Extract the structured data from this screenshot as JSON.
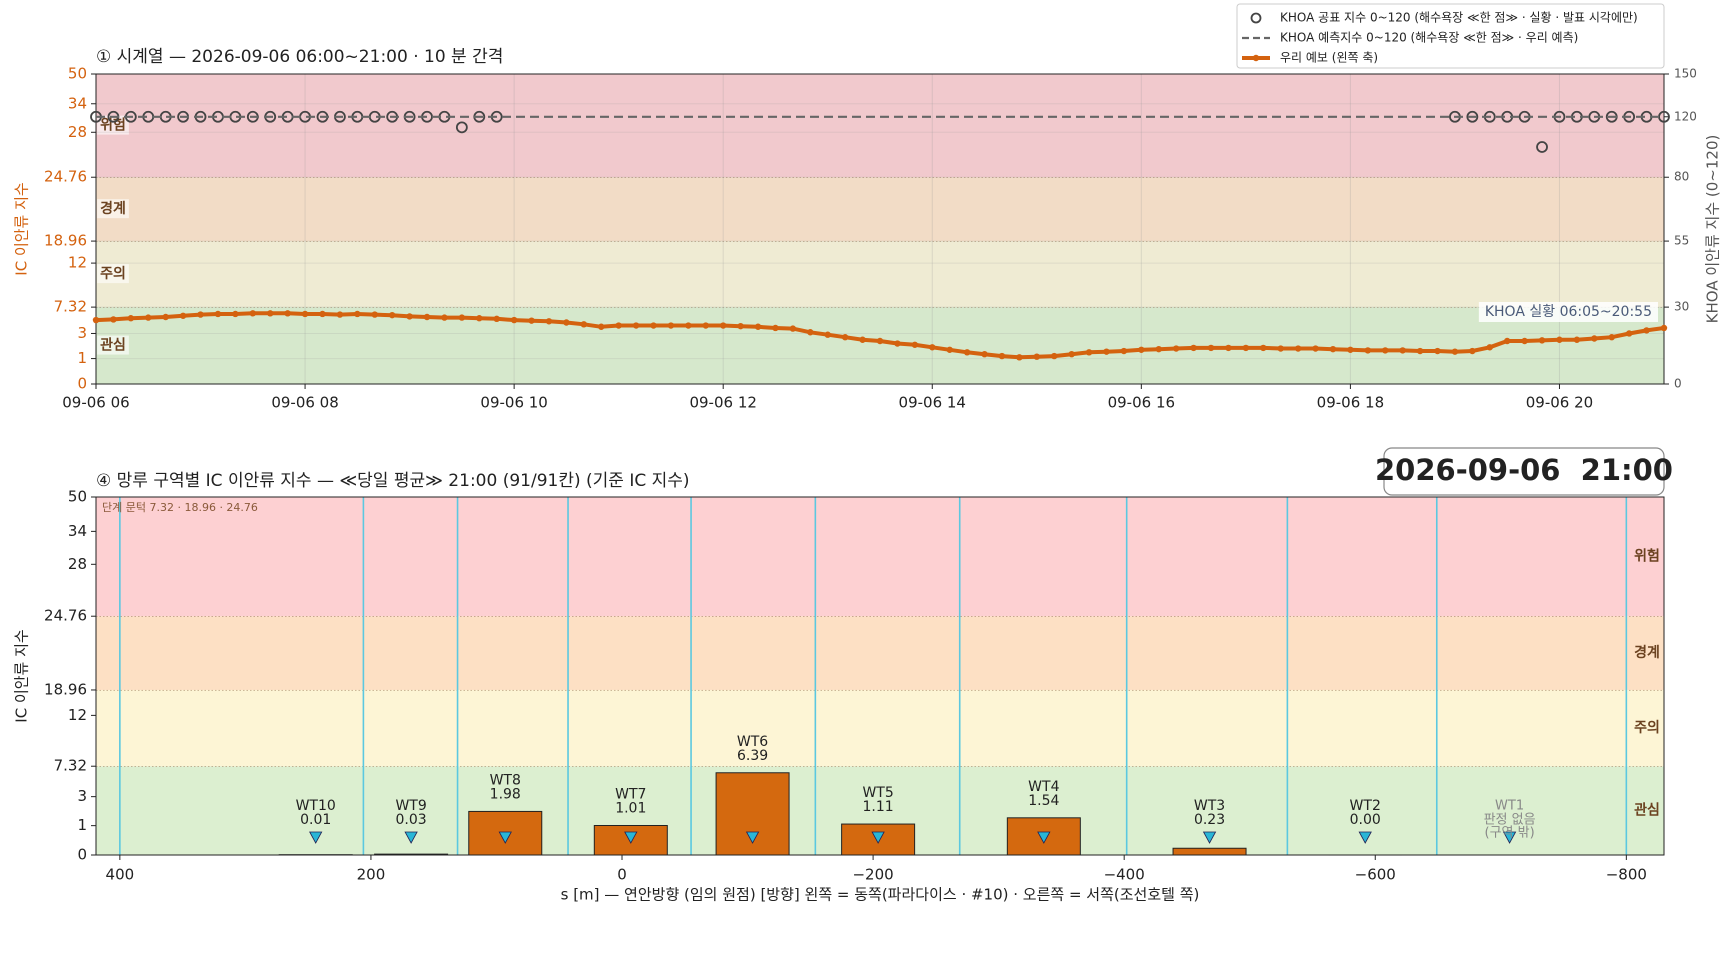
{
  "chart_data": [
    {
      "type": "line",
      "title": "① 시계열 — 2026-09-06 06:00~21:00 · 10 분 간격",
      "ylabel": "IC 이안류 지수",
      "y2label": "KHOA 이안류 지수 (0~120)",
      "annotation": "KHOA 실황 06:05~20:55",
      "categories": [
        "06:00",
        "06:10",
        "06:20",
        "06:30",
        "06:40",
        "06:50",
        "07:00",
        "07:10",
        "07:20",
        "07:30",
        "07:40",
        "07:50",
        "08:00",
        "08:10",
        "08:20",
        "08:30",
        "08:40",
        "08:50",
        "09:00",
        "09:10",
        "09:20",
        "09:30",
        "09:40",
        "09:50",
        "10:00",
        "10:10",
        "10:20",
        "10:30",
        "10:40",
        "10:50",
        "11:00",
        "11:10",
        "11:20",
        "11:30",
        "11:40",
        "11:50",
        "12:00",
        "12:10",
        "12:20",
        "12:30",
        "12:40",
        "12:50",
        "13:00",
        "13:10",
        "13:20",
        "13:30",
        "13:40",
        "13:50",
        "14:00",
        "14:10",
        "14:20",
        "14:30",
        "14:40",
        "14:50",
        "15:00",
        "15:10",
        "15:20",
        "15:30",
        "15:40",
        "15:50",
        "16:00",
        "16:10",
        "16:20",
        "16:30",
        "16:40",
        "16:50",
        "17:00",
        "17:10",
        "17:20",
        "17:30",
        "17:40",
        "17:50",
        "18:00",
        "18:10",
        "18:20",
        "18:30",
        "18:40",
        "18:50",
        "19:00",
        "19:10",
        "19:20",
        "19:30",
        "19:40",
        "19:50",
        "20:00",
        "20:10",
        "20:20",
        "20:30",
        "20:40",
        "20:50",
        "21:00"
      ],
      "xticks": [
        {
          "value": "06:00",
          "label": "09-06 06"
        },
        {
          "value": "08:00",
          "label": "09-06 08"
        },
        {
          "value": "10:00",
          "label": "09-06 10"
        },
        {
          "value": "12:00",
          "label": "09-06 12"
        },
        {
          "value": "14:00",
          "label": "09-06 14"
        },
        {
          "value": "16:00",
          "label": "09-06 16"
        },
        {
          "value": "18:00",
          "label": "09-06 18"
        },
        {
          "value": "20:00",
          "label": "09-06 20"
        }
      ],
      "ylim": [
        0,
        50
      ],
      "yticks": [
        0,
        1,
        3,
        7.32,
        12,
        18.96,
        24.76,
        28,
        34,
        50
      ],
      "y2lim": [
        0,
        150
      ],
      "y2ticks": [
        0,
        30,
        55,
        80,
        120,
        150
      ],
      "grid": true,
      "legend": "upper right",
      "bands": [
        {
          "name": "관심",
          "from": 0,
          "to": 7.32,
          "color": "#d6e8cc"
        },
        {
          "name": "주의",
          "from": 7.32,
          "to": 18.96,
          "color": "#efebd3"
        },
        {
          "name": "경계",
          "from": 18.96,
          "to": 24.76,
          "color": "#f2dcc6"
        },
        {
          "name": "위험",
          "from": 24.76,
          "to": 50,
          "color": "#f1c9cd"
        }
      ],
      "series": [
        {
          "name": "KHOA 공표 지수 0~120 (해수욕장 ≪한 점≫ · 실황 · 발표 시각에만)",
          "style": "markers",
          "axis": "y2",
          "color": "#444444",
          "values": [
            120,
            120,
            120,
            120,
            120,
            120,
            120,
            120,
            120,
            120,
            120,
            120,
            120,
            120,
            120,
            120,
            120,
            120,
            120,
            120,
            120,
            113,
            120,
            120,
            null,
            null,
            null,
            null,
            null,
            null,
            null,
            null,
            null,
            null,
            null,
            null,
            null,
            null,
            null,
            null,
            null,
            null,
            null,
            null,
            null,
            null,
            null,
            null,
            null,
            null,
            null,
            null,
            null,
            null,
            null,
            null,
            null,
            null,
            null,
            null,
            null,
            null,
            null,
            null,
            null,
            null,
            null,
            null,
            null,
            null,
            null,
            null,
            null,
            null,
            null,
            null,
            null,
            null,
            120,
            120,
            120,
            120,
            120,
            100,
            120,
            120,
            120,
            120,
            120,
            120,
            120
          ]
        },
        {
          "name": "KHOA 예측지수 0~120 (해수욕장 ≪한 점≫ · 우리 예측)",
          "style": "dashed",
          "axis": "y2",
          "color": "#666666",
          "values": [
            120,
            120,
            120,
            120,
            120,
            120,
            120,
            120,
            120,
            120,
            120,
            120,
            120,
            120,
            120,
            120,
            120,
            120,
            120,
            120,
            120,
            120,
            120,
            120,
            120,
            120,
            120,
            120,
            120,
            120,
            120,
            120,
            120,
            120,
            120,
            120,
            120,
            120,
            120,
            120,
            120,
            120,
            120,
            120,
            120,
            120,
            120,
            120,
            120,
            120,
            120,
            120,
            120,
            120,
            120,
            120,
            120,
            120,
            120,
            120,
            120,
            120,
            120,
            120,
            120,
            120,
            120,
            120,
            120,
            120,
            120,
            120,
            120,
            120,
            120,
            120,
            120,
            120,
            120,
            120,
            120,
            120,
            120,
            120,
            120,
            120,
            120,
            120,
            120,
            120,
            120
          ]
        },
        {
          "name": "우리 예보 (왼쪽 축)",
          "style": "line",
          "color": "#d4620f",
          "values": [
            5.2,
            5.3,
            5.5,
            5.6,
            5.7,
            5.9,
            6.1,
            6.2,
            6.2,
            6.3,
            6.3,
            6.3,
            6.2,
            6.2,
            6.1,
            6.2,
            6.1,
            6.0,
            5.8,
            5.7,
            5.6,
            5.6,
            5.5,
            5.4,
            5.2,
            5.1,
            5.0,
            4.8,
            4.5,
            4.1,
            4.3,
            4.3,
            4.3,
            4.3,
            4.3,
            4.3,
            4.3,
            4.2,
            4.1,
            3.9,
            3.8,
            3.2,
            2.9,
            2.7,
            2.5,
            2.4,
            2.2,
            2.1,
            1.9,
            1.7,
            1.5,
            1.35,
            1.2,
            1.1,
            1.15,
            1.2,
            1.35,
            1.5,
            1.55,
            1.6,
            1.7,
            1.75,
            1.8,
            1.85,
            1.85,
            1.85,
            1.85,
            1.85,
            1.8,
            1.8,
            1.8,
            1.75,
            1.7,
            1.65,
            1.65,
            1.65,
            1.6,
            1.6,
            1.55,
            1.6,
            1.9,
            2.4,
            2.4,
            2.45,
            2.5,
            2.5,
            2.6,
            2.7,
            3.0,
            3.5,
            3.9
          ]
        }
      ]
    },
    {
      "type": "bar",
      "title": "④ 망루 구역별 IC 이안류 지수 — ≪당일 평균≫ 21:00  (91/91칸)   (기준 IC 지수)",
      "datetime_box": "2026-09-06  21:00",
      "note": "단계 문턱 7.32 · 18.96 · 24.76",
      "xlabel": "s [m] — 연안방향 (임의 원점)     [방향] 왼쪽 = 동쪽(파라다이스 · #10) · 오른쪽 = 서쪽(조선호텔 쪽)",
      "ylabel": "IC 이안류 지수",
      "categories": [
        "WT10",
        "WT9",
        "WT8",
        "WT7",
        "WT6",
        "WT5",
        "WT4",
        "WT3",
        "WT2",
        "WT1"
      ],
      "x": [
        244,
        168,
        93,
        -7,
        -104,
        -204,
        -336,
        -468,
        -592,
        -707
      ],
      "values": [
        0.01,
        0.03,
        1.98,
        1.01,
        6.39,
        1.11,
        1.54,
        0.23,
        0,
        null
      ],
      "value_labels": [
        "0.01",
        "0.03",
        "1.98",
        "1.01",
        "6.39",
        "1.11",
        "1.54",
        "0.23",
        "0.00",
        "판정 없음"
      ],
      "out_of_zone_label": "(구역 밖)",
      "color": "#d4690f",
      "boundary_color": "#5bc8e0",
      "marker_color": "#29b6d6",
      "boundaries": [
        400,
        206,
        131,
        43,
        -55,
        -154,
        -269,
        -402,
        -530,
        -649,
        -800
      ],
      "xlim": [
        419,
        -830
      ],
      "xticks": [
        400,
        200,
        0,
        {
          "value": -200,
          "label": "−200"
        },
        {
          "value": -400,
          "label": "−400"
        },
        {
          "value": -600,
          "label": "−600"
        },
        {
          "value": -800,
          "label": "−800"
        }
      ],
      "ylim": [
        0,
        50
      ],
      "yticks": [
        0,
        1,
        3,
        7.32,
        12,
        18.96,
        24.76,
        28,
        34,
        50
      ],
      "bands": [
        {
          "name": "관심",
          "from": 0,
          "to": 7.32,
          "color": "#dcefd0"
        },
        {
          "name": "주의",
          "from": 7.32,
          "to": 18.96,
          "color": "#fdf5d5"
        },
        {
          "name": "경계",
          "from": 18.96,
          "to": 24.76,
          "color": "#fde0c4"
        },
        {
          "name": "위험",
          "from": 24.76,
          "to": 50,
          "color": "#fdd0d2"
        }
      ]
    }
  ]
}
